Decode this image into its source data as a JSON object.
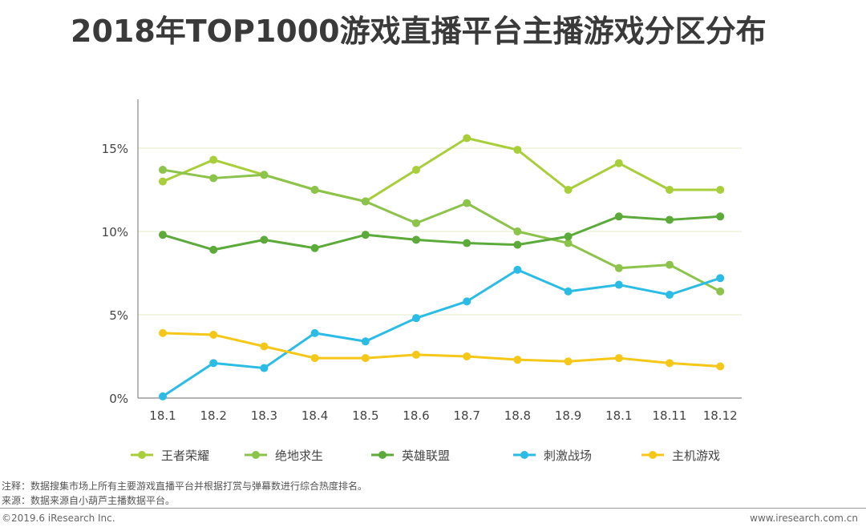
{
  "title": "2018年TOP1000游戏直播平台主播游戏分区分布",
  "chart_data": {
    "type": "line",
    "categories": [
      "18.1",
      "18.2",
      "18.3",
      "18.4",
      "18.5",
      "18.6",
      "18.7",
      "18.8",
      "18.9",
      "18.1",
      "18.11",
      "18.12"
    ],
    "y_ticks": [
      "0%",
      "5%",
      "10%",
      "15%"
    ],
    "y_tick_values": [
      0,
      5,
      10,
      15
    ],
    "ylim": [
      0,
      17.5
    ],
    "grid": true,
    "legend_position": "bottom",
    "series": [
      {
        "name": "王者荣耀",
        "color": "#A8CE3A",
        "values": [
          13.0,
          14.3,
          13.4,
          12.5,
          11.8,
          13.7,
          15.6,
          14.9,
          12.5,
          14.1,
          12.5,
          12.5
        ]
      },
      {
        "name": "绝地求生",
        "color": "#8CC34A",
        "values": [
          13.7,
          13.2,
          13.4,
          12.5,
          11.8,
          10.5,
          11.7,
          10.0,
          9.3,
          7.8,
          8.0,
          6.4
        ]
      },
      {
        "name": "英雄联盟",
        "color": "#5BAA3A",
        "values": [
          9.8,
          8.9,
          9.5,
          9.0,
          9.8,
          9.5,
          9.3,
          9.2,
          9.7,
          10.9,
          10.7,
          10.9
        ]
      },
      {
        "name": "刺激战场",
        "color": "#2BBCE6",
        "values": [
          0.1,
          2.1,
          1.8,
          3.9,
          3.4,
          4.8,
          5.8,
          7.7,
          6.4,
          6.8,
          6.2,
          7.2
        ]
      },
      {
        "name": "主机游戏",
        "color": "#F5C718",
        "values": [
          3.9,
          3.8,
          3.1,
          2.4,
          2.4,
          2.6,
          2.5,
          2.3,
          2.2,
          2.4,
          2.1,
          1.9
        ]
      }
    ]
  },
  "notes": {
    "annotation": "注释：数据搜集市场上所有主要游戏直播平台并根据打赏与弹幕数进行综合热度排名。",
    "source": "来源：数据来源自小葫芦主播数据平台。"
  },
  "footer": {
    "copyright": "©2019.6 iResearch Inc.",
    "website": "www.iresearch.com.cn"
  }
}
